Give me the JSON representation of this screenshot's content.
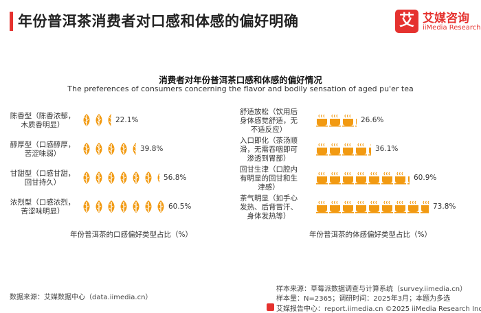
{
  "header": {
    "title": "年份普洱茶消费者对口感和体感的偏好明确",
    "brand_logo_char": "艾",
    "brand_cn": "艾媒咨询",
    "brand_en": "iiMedia Research"
  },
  "chart_data": [
    {
      "type": "bar",
      "title": "消费者对年份普洱茶口感和体感的偏好情况",
      "subtitle": "The preferences of consumers concerning the flavor and bodily sensation of aged pu'er tea",
      "xlabel": "年份普洱茶的口感偏好类型占比（%）",
      "icon": "tea-leaf-icon",
      "unit": "%",
      "categories": [
        "陈香型（陈香浓郁，木质香明显）",
        "醇厚型（口感醇厚，苦涩味弱）",
        "甘甜型（口感甘甜，回甘持久）",
        "浓烈型（口感浓烈，苦涩味明显）"
      ],
      "category_lines": [
        [
          "陈香型（陈香浓郁，",
          "木质香明显）"
        ],
        [
          "醇厚型（口感醇厚，",
          "苦涩味弱）"
        ],
        [
          "甘甜型（口感甘甜，",
          "回甘持久）"
        ],
        [
          "浓烈型（口感浓烈，",
          "苦涩味明显）"
        ]
      ],
      "values": [
        22.1,
        39.8,
        56.8,
        60.5
      ],
      "value_labels": [
        "22.1%",
        "39.8%",
        "56.8%",
        "60.5%"
      ]
    },
    {
      "type": "bar",
      "xlabel": "年份普洱茶的体感偏好类型占比（%）",
      "icon": "tea-cup-icon",
      "unit": "%",
      "categories": [
        "舒适放松（饮用后身体感觉舒适，无不适反应）",
        "入口即化（茶汤顺滑，无需吞咽即可渗透到胃部）",
        "回甘生津（口腔内有明显的回甘和生津感）",
        "茶气明显（如手心发热、后背冒汗、身体发热等）"
      ],
      "category_lines": [
        [
          "舒适放松（饮用后",
          "身体感觉舒适，无",
          "不适反应）"
        ],
        [
          "入口即化（茶汤顺",
          "滑，无需吞咽即可",
          "渗透到胃部）"
        ],
        [
          "回甘生津（口腔内",
          "有明显的回甘和生",
          "津感）"
        ],
        [
          "茶气明显（如手心",
          "发热、后背冒汗、",
          "身体发热等）"
        ]
      ],
      "values": [
        26.6,
        36.1,
        60.9,
        73.8
      ],
      "value_labels": [
        "26.6%",
        "36.1%",
        "60.9%",
        "73.8%"
      ]
    }
  ],
  "sources": {
    "left": "数据来源：艾媒数据中心（data.iimedia.cn）",
    "right_line1": "样本来源：草莓派数据调查与计算系统（survey.iimedia.cn）",
    "right_line2": "样本量：N=2365；调研时间：2025年3月；本题为多选"
  },
  "footer": {
    "text": "艾媒报告中心：report.iimedia.cn  ©2025  iiMedia Research  Inc"
  },
  "colors": {
    "accent": "#e5322f",
    "icon_fill": "#f29a12",
    "icon_empty": "#d9d9d9"
  }
}
